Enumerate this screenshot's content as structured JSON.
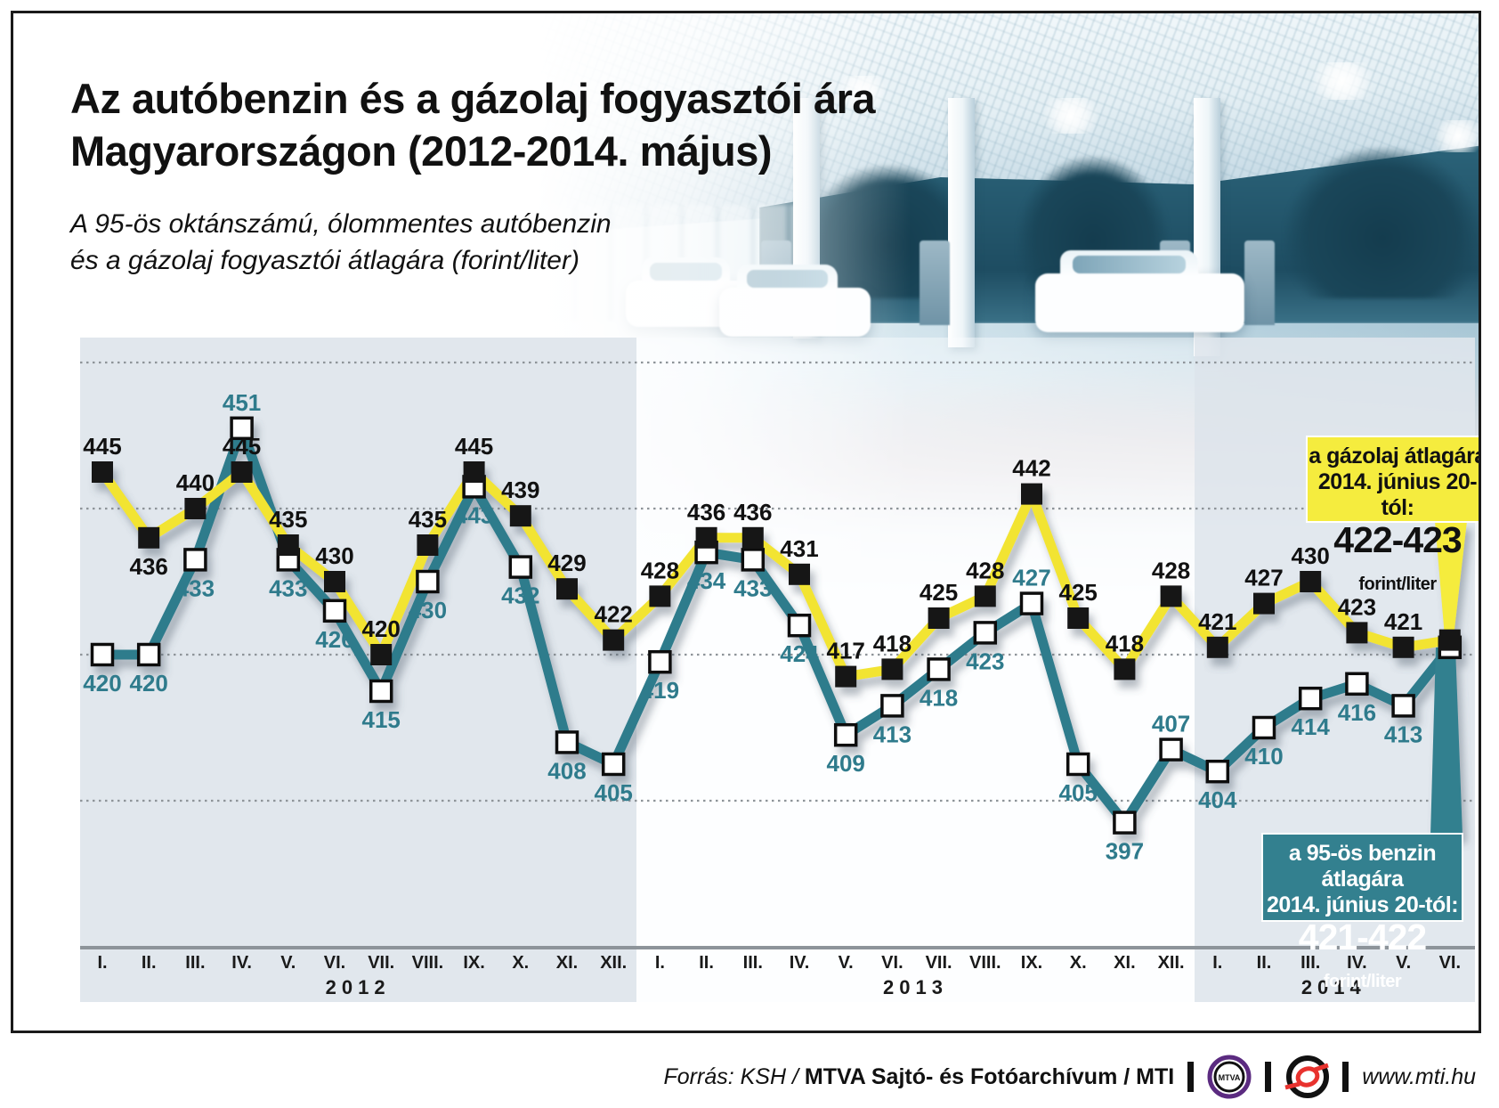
{
  "title": {
    "line1": "Az autóbenzin és a gázolaj fogyasztói ára",
    "line2": "Magyarországon (2012-2014. május)"
  },
  "subtitle": {
    "line1": "A 95-ös oktánszámú, ólommentes autóbenzin",
    "line2": "és a gázolaj fogyasztói átlagára (forint/liter)"
  },
  "callouts": {
    "diesel": {
      "line1": "a gázolaj átlagára",
      "line2": "2014. június 20-tól:",
      "value": "422-423",
      "unit": "forint/liter"
    },
    "petrol": {
      "line1": "a 95-ös benzin átlagára",
      "line2": "2014. június 20-tól:",
      "value": "421-422",
      "unit": "forint/liter"
    }
  },
  "footer": {
    "source_italic": "Forrás: KSH /",
    "source_bold": "MTVA Sajtó- és Fotóarchívum / MTI",
    "website": "www.mti.hu",
    "mtva_logo_text": "MTVA"
  },
  "colors": {
    "diesel_line": "#f2e431",
    "petrol_line": "#2f7b8c",
    "diesel_box": "#f5ec3e",
    "petrol_box": "#33808f",
    "band": "#dfe6ec",
    "band_2013": "#fbfdfe",
    "grid": "#8e9499",
    "axis": "#8d949a",
    "label_dark": "#111111",
    "label_teal": "#2f7b8c",
    "mtva_purple": "#5b2b80",
    "mti_red": "#e8322e"
  },
  "chart_data": {
    "type": "line",
    "title": "Az autóbenzin és a gázolaj fogyasztói ára Magyarországon (2012-2014. május)",
    "ylabel": "forint/liter",
    "ylim": [
      390,
      462
    ],
    "gridlines": [
      400,
      420,
      440,
      460
    ],
    "grid": "dotted-horizontal",
    "legend_position": "none",
    "years": [
      {
        "label": "2012",
        "months": [
          "I.",
          "II.",
          "III.",
          "IV.",
          "V.",
          "VI.",
          "VII.",
          "VIII.",
          "IX.",
          "X.",
          "XI.",
          "XII."
        ]
      },
      {
        "label": "2013",
        "months": [
          "I.",
          "II.",
          "III.",
          "IV.",
          "V.",
          "VI.",
          "VII.",
          "VIII.",
          "IX.",
          "X.",
          "XI.",
          "XII."
        ]
      },
      {
        "label": "2014",
        "months": [
          "I.",
          "II.",
          "III.",
          "IV.",
          "V.",
          "VI."
        ]
      }
    ],
    "series": [
      {
        "name": "gázolaj",
        "marker": "black-square",
        "color": "#f2e431",
        "values": [
          445,
          436,
          440,
          445,
          435,
          430,
          420,
          435,
          445,
          439,
          429,
          422,
          428,
          436,
          436,
          431,
          417,
          418,
          425,
          428,
          442,
          425,
          418,
          428,
          421,
          427,
          430,
          423,
          421,
          422
        ]
      },
      {
        "name": "95-ös benzin",
        "marker": "white-square",
        "color": "#2f7b8c",
        "values": [
          420,
          420,
          433,
          451,
          433,
          426,
          415,
          430,
          443,
          432,
          408,
          405,
          419,
          434,
          433,
          424,
          409,
          413,
          418,
          423,
          427,
          405,
          397,
          407,
          404,
          410,
          414,
          416,
          413,
          421
        ]
      }
    ],
    "label_hints": {
      "diesel_label_below": [
        1
      ],
      "petrol_label_above": [
        3,
        20,
        23
      ],
      "unlabeled_points": [
        29
      ]
    }
  }
}
